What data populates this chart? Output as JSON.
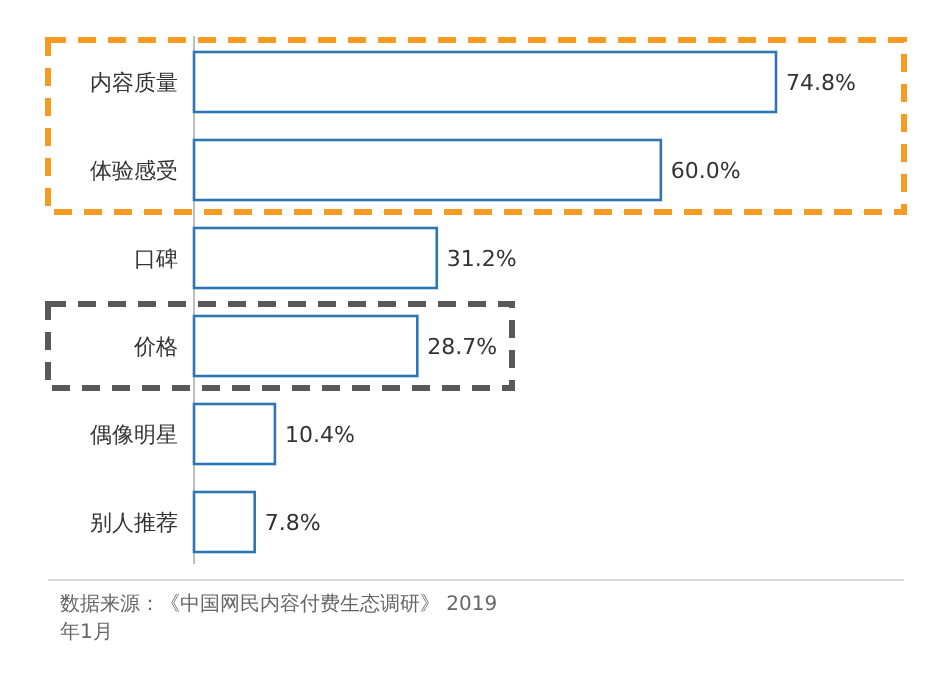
{
  "chart_data": {
    "type": "bar",
    "orientation": "horizontal",
    "categories": [
      "内容质量",
      "体验感受",
      "口碑",
      "价格",
      "偶像明星",
      "别人推荐"
    ],
    "values": [
      74.8,
      60.0,
      31.2,
      28.7,
      10.4,
      7.8
    ],
    "value_labels": [
      "74.8%",
      "60.0%",
      "31.2%",
      "28.7%",
      "10.4%",
      "7.8%"
    ],
    "color": "#2e75b6",
    "annotations": [
      "数据来源：《中国网民内容付费生态调研》 2019年1月"
    ]
  }
}
